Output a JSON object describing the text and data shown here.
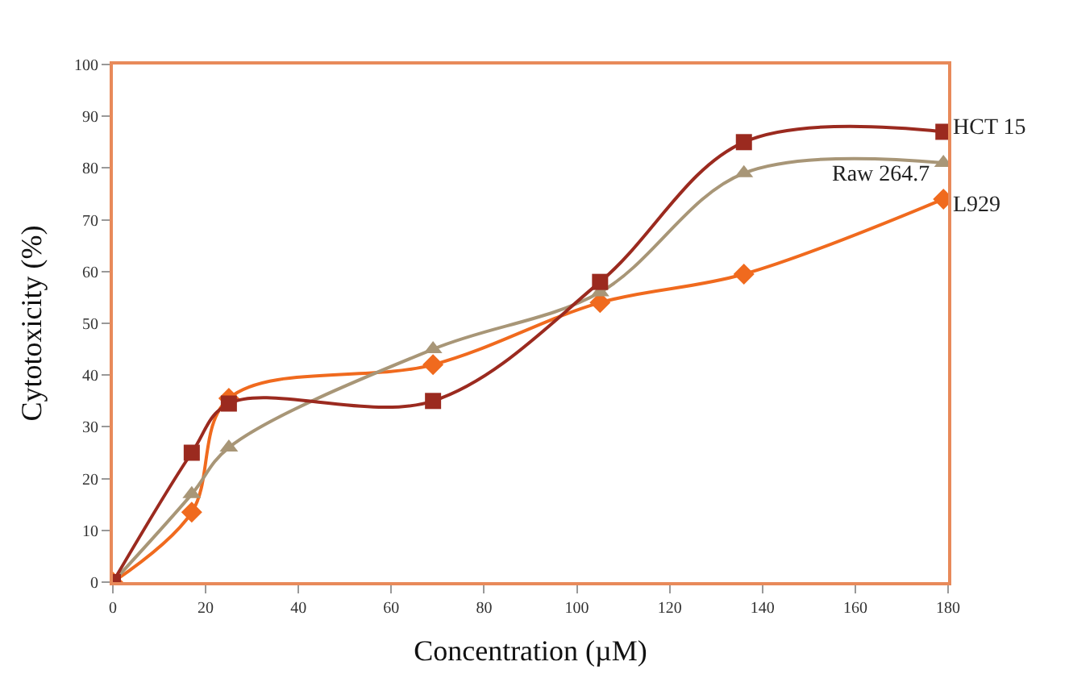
{
  "chart_data": {
    "type": "line",
    "xlabel": "Concentration (µM)",
    "ylabel": "Cytotoxicity (%)",
    "x": [
      0,
      17,
      25,
      69,
      105,
      136,
      179
    ],
    "series": [
      {
        "name": "HCT 15",
        "color": "#9b2a1f",
        "marker": "square",
        "values": [
          0,
          25,
          34.5,
          35,
          58,
          85,
          87
        ]
      },
      {
        "name": "Raw 264.7",
        "color": "#a89677",
        "marker": "triangle",
        "values": [
          0,
          17,
          26,
          45,
          56,
          79,
          81
        ]
      },
      {
        "name": "L929",
        "color": "#f06a1e",
        "marker": "diamond",
        "values": [
          0,
          13.5,
          35.5,
          42,
          54,
          59.5,
          74
        ]
      }
    ],
    "xlim": [
      0,
      180
    ],
    "xticks": [
      0,
      20,
      40,
      60,
      80,
      100,
      120,
      140,
      160,
      180
    ],
    "ylim": [
      0,
      100
    ],
    "yticks": [
      0,
      10,
      20,
      30,
      40,
      50,
      60,
      70,
      80,
      90,
      100
    ],
    "legend": false
  }
}
